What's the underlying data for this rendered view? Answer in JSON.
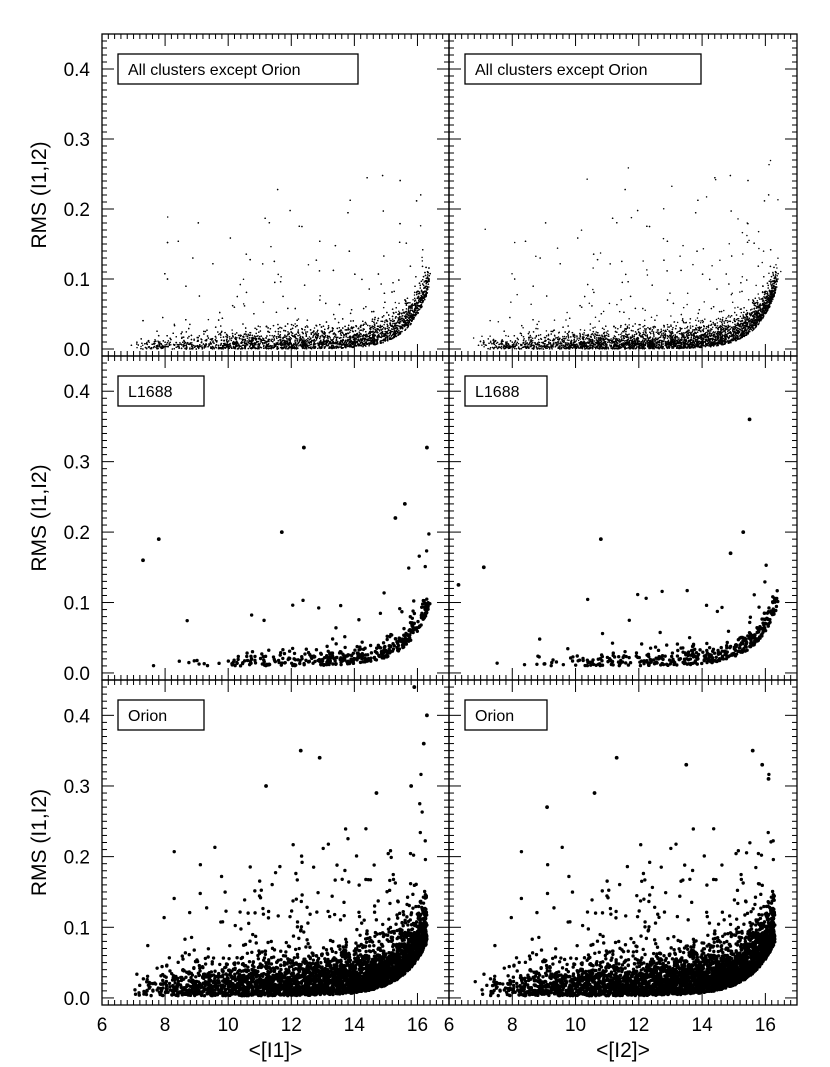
{
  "chart_data": [
    {
      "type": "scatter",
      "panel": "all-i1",
      "label": "All clusters except Orion",
      "xlabel": "",
      "ylabel": "RMS (I1,I2)",
      "xlim": [
        6,
        17
      ],
      "ylim": [
        -0.01,
        0.45
      ],
      "density": "very-dense-small",
      "distribution": "points concentrated along a lower envelope rising from about 0.0 near <[I1]>=11 to about 0.08 near 16.3, with a sparse scatter above reaching about 0.35"
    },
    {
      "type": "scatter",
      "panel": "all-i2",
      "label": "All clusters except Orion",
      "xlabel": "",
      "ylabel": "",
      "xlim": [
        6,
        17
      ],
      "ylim": [
        -0.01,
        0.45
      ],
      "density": "very-dense-small",
      "distribution": "points concentrated along a lower envelope rising from about 0.0 near <[I2]>=11 to about 0.08 near 16, with a sparse scatter above reaching about 0.40"
    },
    {
      "type": "scatter",
      "panel": "l1688-i1",
      "label": "L1688",
      "xlabel": "",
      "ylabel": "RMS (I1,I2)",
      "xlim": [
        6,
        17
      ],
      "ylim": [
        -0.01,
        0.45
      ],
      "density": "sparse",
      "highlights": [
        [
          7.3,
          0.16
        ],
        [
          7.8,
          0.19
        ],
        [
          11.7,
          0.2
        ],
        [
          12.4,
          0.32
        ],
        [
          15.3,
          0.22
        ],
        [
          15.6,
          0.24
        ],
        [
          16.3,
          0.32
        ]
      ]
    },
    {
      "type": "scatter",
      "panel": "l1688-i2",
      "label": "L1688",
      "xlabel": "",
      "ylabel": "",
      "xlim": [
        6,
        17
      ],
      "ylim": [
        -0.01,
        0.45
      ],
      "density": "sparse",
      "highlights": [
        [
          6.3,
          0.125
        ],
        [
          7.1,
          0.15
        ],
        [
          10.8,
          0.19
        ],
        [
          14.9,
          0.17
        ],
        [
          15.3,
          0.2
        ],
        [
          15.5,
          0.36
        ]
      ]
    },
    {
      "type": "scatter",
      "panel": "orion-i1",
      "label": "Orion",
      "xlabel": "<[I1]>",
      "ylabel": "RMS (I1,I2)",
      "xlim": [
        6,
        17
      ],
      "ylim": [
        -0.01,
        0.45
      ],
      "density": "dense",
      "highlights": [
        [
          12.3,
          0.35
        ],
        [
          12.9,
          0.34
        ],
        [
          11.2,
          0.3
        ],
        [
          15.9,
          0.44
        ],
        [
          16.3,
          0.4
        ],
        [
          16.2,
          0.36
        ],
        [
          15.8,
          0.3
        ],
        [
          14.7,
          0.29
        ]
      ]
    },
    {
      "type": "scatter",
      "panel": "orion-i2",
      "label": "Orion",
      "xlabel": "<[I2]>",
      "ylabel": "",
      "xlim": [
        6,
        17
      ],
      "ylim": [
        -0.01,
        0.45
      ],
      "density": "dense",
      "highlights": [
        [
          11.3,
          0.34
        ],
        [
          13.5,
          0.33
        ],
        [
          15.6,
          0.35
        ],
        [
          15.9,
          0.33
        ],
        [
          16.1,
          0.31
        ],
        [
          9.1,
          0.27
        ],
        [
          10.6,
          0.29
        ]
      ]
    }
  ],
  "x_ticks": [
    "6",
    "8",
    "10",
    "12",
    "14",
    "16"
  ],
  "y_ticks": [
    "0.0",
    "0.1",
    "0.2",
    "0.3",
    "0.4"
  ]
}
